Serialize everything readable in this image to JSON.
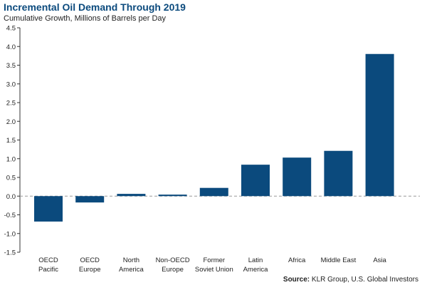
{
  "chart_data": {
    "type": "bar",
    "title": "Incremental Oil Demand Through 2019",
    "subtitle": "Cumulative Growth, Millions of Barrels per Day",
    "categories": [
      [
        "OECD",
        "Pacific"
      ],
      [
        "OECD",
        "Europe"
      ],
      [
        "North",
        "America"
      ],
      [
        "Non-OECD",
        "Europe"
      ],
      [
        "Former",
        "Soviet Union"
      ],
      [
        "Latin",
        "America"
      ],
      [
        "Africa"
      ],
      [
        "Middle East"
      ],
      [
        "Asia"
      ]
    ],
    "values": [
      -0.68,
      -0.17,
      0.06,
      0.04,
      0.22,
      0.84,
      1.03,
      1.21,
      3.8
    ],
    "ylim": [
      -1.5,
      4.5
    ],
    "yticks": [
      "4.5",
      "4.0",
      "3.5",
      "3.0",
      "2.5",
      "2.0",
      "1.5",
      "1.0",
      "0.5",
      "0.0",
      "-0.5",
      "-1.0",
      "-1.5"
    ],
    "ytick_values": [
      4.5,
      4.0,
      3.5,
      3.0,
      2.5,
      2.0,
      1.5,
      1.0,
      0.5,
      0.0,
      -0.5,
      -1.0,
      -1.5
    ],
    "bar_color": "#0b4a7d",
    "grid": false,
    "zero_line": "dashed"
  },
  "source": {
    "label": "Source:",
    "text": "KLR Group, U.S. Global Investors"
  }
}
